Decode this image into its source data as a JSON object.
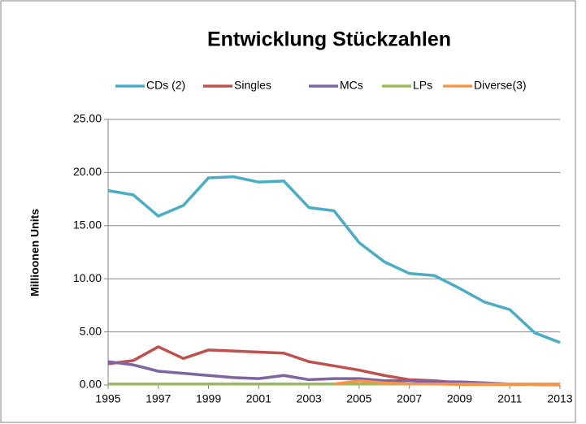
{
  "chart_data": {
    "type": "line",
    "title": "Entwicklung Stückzahlen",
    "y_label": "Millioonen Units",
    "x": [
      1995,
      1996,
      1997,
      1998,
      1999,
      2000,
      2001,
      2002,
      2003,
      2004,
      2005,
      2006,
      2007,
      2008,
      2009,
      2010,
      2011,
      2012,
      2013
    ],
    "xlim": [
      1995,
      2013
    ],
    "xticks": [
      1995,
      1997,
      1999,
      2001,
      2003,
      2005,
      2007,
      2009,
      2011,
      2013
    ],
    "ylim": [
      0,
      25
    ],
    "yticks": [
      {
        "value": 0,
        "label": "0.00"
      },
      {
        "value": 5,
        "label": "5.00"
      },
      {
        "value": 10,
        "label": "10.00"
      },
      {
        "value": 15,
        "label": "15.00"
      },
      {
        "value": 20,
        "label": "20.00"
      },
      {
        "value": 25,
        "label": "25.00"
      }
    ],
    "grid": true,
    "legend": "top",
    "series": [
      {
        "name": "CDs (2)",
        "color": "#4bacc6",
        "values": [
          18.3,
          17.9,
          15.9,
          16.9,
          19.5,
          19.6,
          19.1,
          19.2,
          16.7,
          16.4,
          13.4,
          11.6,
          10.5,
          10.3,
          9.1,
          7.8,
          7.1,
          4.9,
          4.0
        ]
      },
      {
        "name": "Singles",
        "color": "#c0504d",
        "values": [
          2.0,
          2.3,
          3.6,
          2.5,
          3.3,
          3.2,
          3.1,
          3.0,
          2.2,
          1.8,
          1.4,
          0.9,
          0.5,
          0.4,
          0.2,
          0.1,
          0.1,
          0.05,
          0.05
        ]
      },
      {
        "name": "MCs",
        "color": "#8064a2",
        "values": [
          2.2,
          1.9,
          1.3,
          1.1,
          0.9,
          0.7,
          0.6,
          0.9,
          0.5,
          0.6,
          0.6,
          0.4,
          0.4,
          0.3,
          0.3,
          0.2,
          0.1,
          0.05,
          0.02
        ]
      },
      {
        "name": "LPs",
        "color": "#9bbb59",
        "values": [
          0.1,
          0.1,
          0.1,
          0.1,
          0.1,
          0.1,
          0.1,
          0.1,
          0.1,
          0.1,
          0.1,
          0.1,
          0.1,
          0.1,
          0.1,
          0.1,
          0.1,
          0.1,
          0.1
        ]
      },
      {
        "name": "Diverse(3)",
        "color": "#f79646",
        "values": [
          null,
          null,
          null,
          null,
          null,
          null,
          null,
          null,
          null,
          0.1,
          0.4,
          0.2,
          0.1,
          0.1,
          0.05,
          0.05,
          0.05,
          0.05,
          0.05
        ]
      }
    ]
  }
}
